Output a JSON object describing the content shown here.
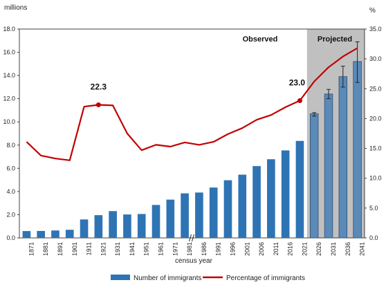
{
  "chart_data": {
    "type": "bar",
    "y_left_label": "millions",
    "y_right_label": "%",
    "xlabel": "census year",
    "ylim_left": [
      0,
      18
    ],
    "ylim_right": [
      0,
      35
    ],
    "yticks_left": [
      "0.0",
      "2.0",
      "4.0",
      "6.0",
      "8.0",
      "10.0",
      "12.0",
      "14.0",
      "16.0",
      "18.0"
    ],
    "yticks_right": [
      "0.0",
      "5.0",
      "10.0",
      "15.0",
      "20.0",
      "25.0",
      "30.0",
      "35.0"
    ],
    "categories": [
      "1871",
      "1881",
      "1891",
      "1901",
      "1911",
      "1921",
      "1931",
      "1941",
      "1951",
      "1961",
      "1971",
      "1981",
      "1986",
      "1991",
      "1996",
      "2001",
      "2006",
      "2011",
      "2016",
      "2021",
      "2026",
      "2031",
      "2036",
      "2041"
    ],
    "series": [
      {
        "name": "Number of immigrants",
        "chart_type": "bar",
        "color": "#2E74B5",
        "projected_color": "#5B89B8",
        "values": [
          0.59,
          0.6,
          0.64,
          0.7,
          1.59,
          1.96,
          2.31,
          2.02,
          2.06,
          2.84,
          3.3,
          3.84,
          3.91,
          4.34,
          4.97,
          5.45,
          6.19,
          6.78,
          7.54,
          8.36,
          10.7,
          12.4,
          13.9,
          15.2
        ],
        "error_low": [
          null,
          null,
          null,
          null,
          null,
          null,
          null,
          null,
          null,
          null,
          null,
          null,
          null,
          null,
          null,
          null,
          null,
          null,
          null,
          null,
          10.5,
          12.0,
          13.0,
          13.4
        ],
        "error_high": [
          null,
          null,
          null,
          null,
          null,
          null,
          null,
          null,
          null,
          null,
          null,
          null,
          null,
          null,
          null,
          null,
          null,
          null,
          null,
          null,
          10.8,
          12.8,
          14.8,
          16.9
        ]
      },
      {
        "name": "Percentage of immigrants",
        "chart_type": "line",
        "axis": "right",
        "color": "#C00000",
        "values": [
          16.1,
          13.8,
          13.3,
          13.0,
          22.0,
          22.3,
          22.2,
          17.5,
          14.7,
          15.6,
          15.3,
          16.0,
          15.6,
          16.1,
          17.4,
          18.4,
          19.8,
          20.6,
          21.9,
          23.0,
          26.2,
          28.6,
          30.4,
          31.8
        ]
      }
    ],
    "regions": [
      {
        "label": "Observed"
      },
      {
        "label": "Projected",
        "categories": [
          "2026",
          "2031",
          "2036",
          "2041"
        ],
        "shade": "#C0C0C0"
      }
    ],
    "annotations": [
      {
        "text": "22.3",
        "category": "1921",
        "series": "Percentage of immigrants"
      },
      {
        "text": "23.0",
        "category": "2021",
        "series": "Percentage of immigrants"
      }
    ],
    "axis_break_between": [
      "1981",
      "1986"
    ],
    "legend_position": "bottom",
    "grid": false
  }
}
